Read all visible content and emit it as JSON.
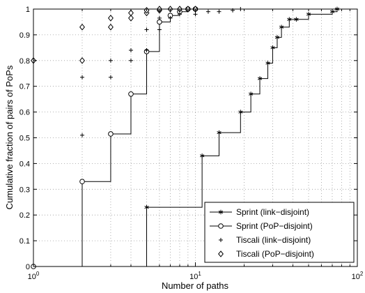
{
  "chart_data": {
    "type": "line",
    "title": "",
    "xlabel": "Number of paths",
    "ylabel": "Cumulative fraction of pairs of PoPs",
    "xscale": "log",
    "xlim": [
      1,
      100
    ],
    "ylim": [
      0,
      1
    ],
    "x_tick_values": [
      1,
      10,
      100
    ],
    "x_tick_labels": [
      {
        "base": "10",
        "exp": "0"
      },
      {
        "base": "10",
        "exp": "1"
      },
      {
        "base": "10",
        "exp": "2"
      }
    ],
    "y_ticks": [
      0,
      0.1,
      0.2,
      0.3,
      0.4,
      0.5,
      0.6,
      0.7,
      0.8,
      0.9,
      1
    ],
    "y_tick_labels": [
      "0",
      "0.1",
      "0.2",
      "0.3",
      "0.4",
      "0.5",
      "0.6",
      "0.7",
      "0.8",
      "0.9",
      "1"
    ],
    "grid": true,
    "legend_position": "bottom-right",
    "series": [
      {
        "name": "Sprint (link−disjoint)",
        "style": "step",
        "marker": "asterisk",
        "color": "#000000",
        "x": [
          5,
          11,
          14,
          19,
          22,
          25,
          28,
          30,
          32,
          34,
          38,
          42,
          50,
          70,
          75
        ],
        "y": [
          0.23,
          0.43,
          0.52,
          0.6,
          0.67,
          0.73,
          0.79,
          0.85,
          0.89,
          0.93,
          0.96,
          0.96,
          0.98,
          0.99,
          1.0
        ]
      },
      {
        "name": "Sprint (PoP−disjoint)",
        "style": "step",
        "marker": "circle",
        "color": "#000000",
        "x": [
          2,
          3,
          4,
          5,
          6,
          7,
          8,
          9,
          10
        ],
        "y": [
          0.33,
          0.515,
          0.67,
          0.835,
          0.95,
          0.975,
          0.99,
          1.0,
          1.0
        ]
      },
      {
        "name": "Tiscali (link−disjoint)",
        "style": "points",
        "marker": "plus",
        "color": "#000000",
        "x": [
          2,
          2,
          3,
          3,
          4,
          4,
          5,
          5,
          6,
          6,
          7,
          8,
          10,
          12,
          14,
          17,
          19
        ],
        "y": [
          0.51,
          0.735,
          0.735,
          0.8,
          0.8,
          0.84,
          0.84,
          0.92,
          0.92,
          0.965,
          0.965,
          0.98,
          0.98,
          0.99,
          0.99,
          0.995,
          1.0
        ]
      },
      {
        "name": "Tiscali (PoP−disjoint)",
        "style": "points",
        "marker": "diamond",
        "color": "#000000",
        "x": [
          1,
          2,
          2,
          3,
          3,
          4,
          4,
          5,
          5,
          6,
          6,
          7,
          8,
          9,
          10
        ],
        "y": [
          0.8,
          0.8,
          0.93,
          0.93,
          0.965,
          0.965,
          0.985,
          0.985,
          0.995,
          0.995,
          1.0,
          1.0,
          1.0,
          1.0,
          1.0
        ]
      }
    ]
  }
}
